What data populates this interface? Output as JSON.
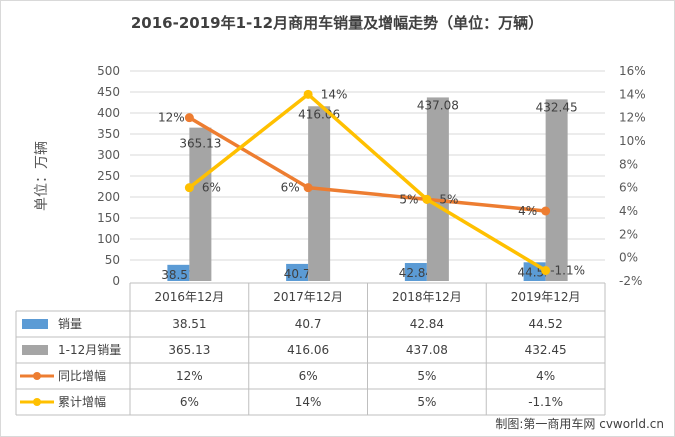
{
  "chart_data": {
    "type": "bar",
    "title": "2016-2019年1-12月商用车销量及增幅走势（单位：万辆）",
    "ylabel": "单位：万辆",
    "ylim": [
      0,
      500
    ],
    "y2lim": [
      -2,
      16
    ],
    "y_ticks": [
      "500",
      "450",
      "400",
      "350",
      "300",
      "250",
      "200",
      "150",
      "100",
      "50",
      "0"
    ],
    "y2_ticks": [
      "16%",
      "14%",
      "12%",
      "10%",
      "8%",
      "6%",
      "4%",
      "2%",
      "0%",
      "-2%"
    ],
    "categories": [
      "2016年12月",
      "2017年12月",
      "2018年12月",
      "2019年12月"
    ],
    "series": [
      {
        "name": "销量",
        "kind": "bar",
        "axis": "left",
        "color": "#5b9bd5",
        "values": [
          38.51,
          40.7,
          42.84,
          44.52
        ],
        "labels": [
          "38.51",
          "40.7",
          "42.84",
          "44.52"
        ]
      },
      {
        "name": "1-12月销量",
        "kind": "bar",
        "axis": "left",
        "color": "#a5a5a5",
        "values": [
          365.13,
          416.06,
          437.08,
          432.45
        ],
        "labels": [
          "365.13",
          "416.06",
          "437.08",
          "432.45"
        ]
      },
      {
        "name": "同比增幅",
        "kind": "line",
        "axis": "right",
        "color": "#ed7d31",
        "values": [
          12,
          6,
          5,
          4
        ],
        "labels": [
          "12%",
          "6%",
          "5%",
          "4%"
        ]
      },
      {
        "name": "累计增幅",
        "kind": "line",
        "axis": "right",
        "color": "#ffc000",
        "values": [
          6,
          14,
          5,
          -1.1
        ],
        "labels": [
          "6%",
          "14%",
          "5%",
          "-1.1%"
        ]
      }
    ],
    "legend": "data-table-left",
    "grid": true
  },
  "credit": "制图:第一商用车网 cvworld.cn"
}
